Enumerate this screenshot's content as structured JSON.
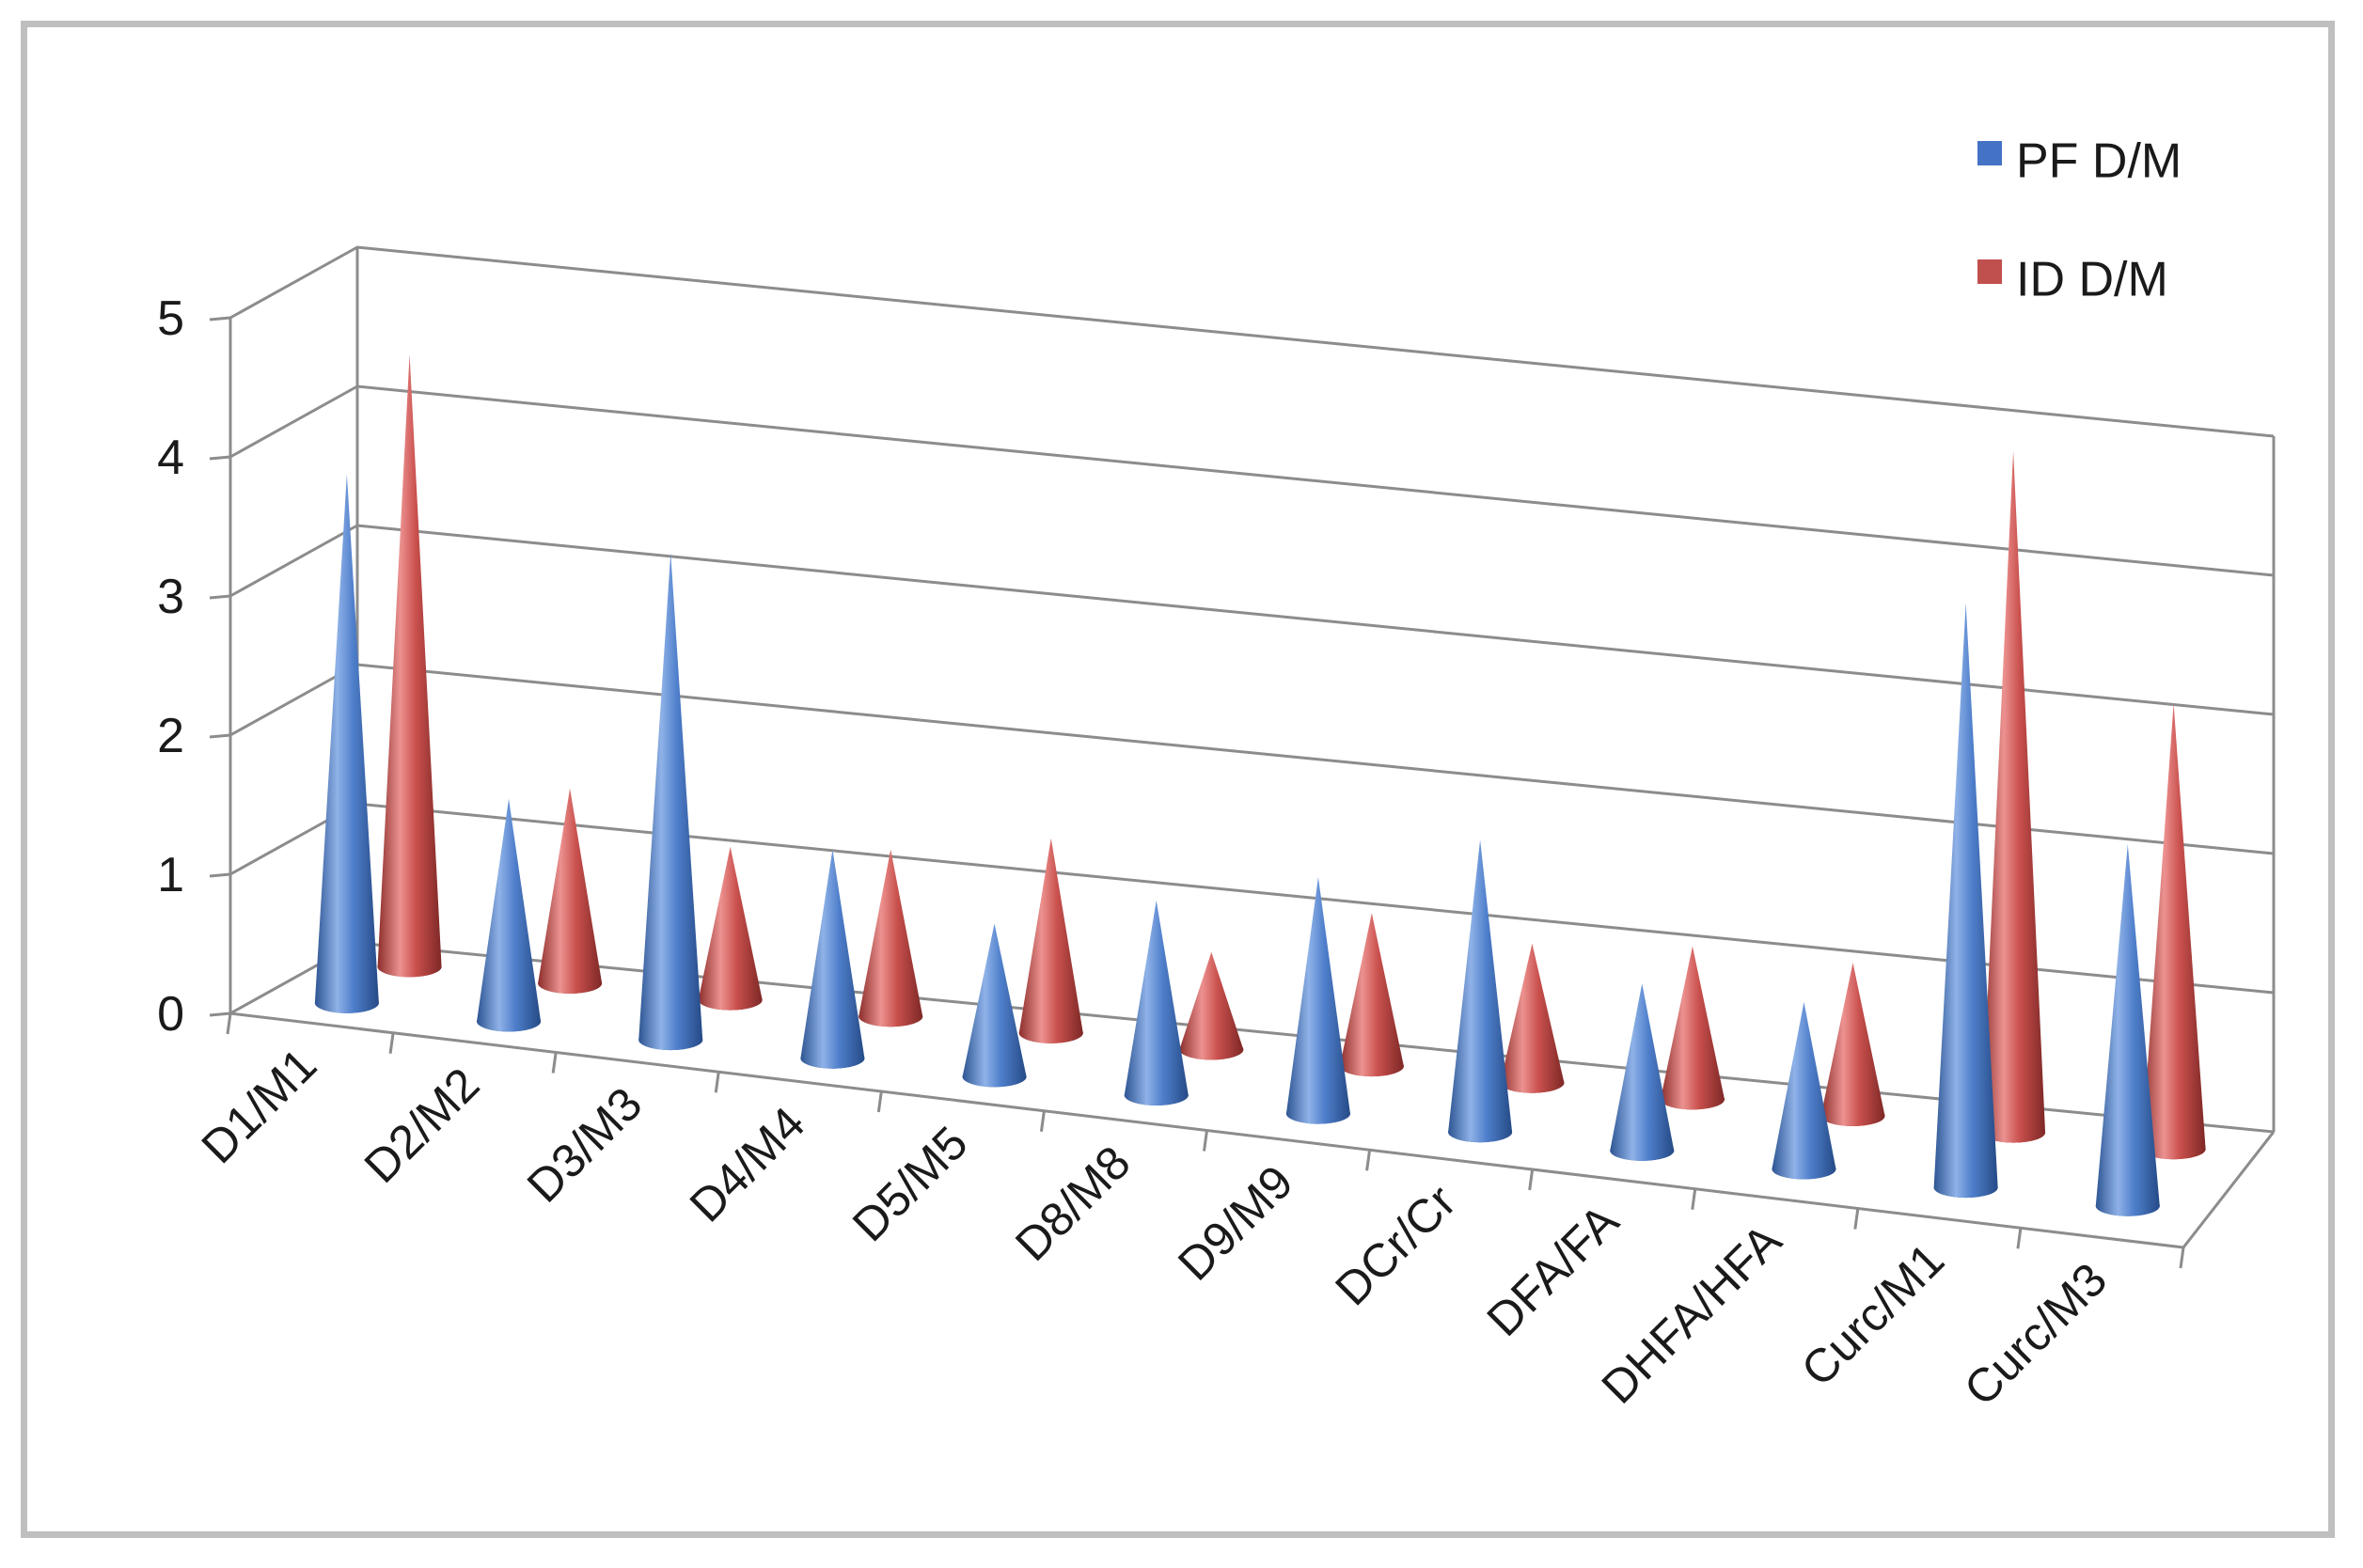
{
  "chart_data": {
    "type": "bar",
    "style": "3d-cone",
    "categories": [
      "D1/M1",
      "D2/M2",
      "D3/M3",
      "D4/M4",
      "D5/M5",
      "D8/M8",
      "D9/M9",
      "DCr/Cr",
      "DFA/FA",
      "DHFA/HFA",
      "Curc/M1",
      "Curc/M3"
    ],
    "series": [
      {
        "name": "PF D/M",
        "color": "#4472c4",
        "values": [
          3.8,
          1.6,
          3.5,
          1.5,
          1.1,
          1.4,
          1.7,
          2.1,
          1.2,
          1.2,
          4.2,
          2.6
        ]
      },
      {
        "name": "ID D/M",
        "color": "#c0504d",
        "values": [
          4.4,
          1.4,
          1.1,
          1.2,
          1.4,
          0.7,
          1.1,
          1.0,
          1.1,
          1.1,
          4.9,
          3.2
        ]
      }
    ],
    "y_ticks": [
      "0",
      "1",
      "2",
      "3",
      "4",
      "5"
    ],
    "ylim": [
      0,
      5
    ],
    "grid": true,
    "legend": "top-right"
  }
}
